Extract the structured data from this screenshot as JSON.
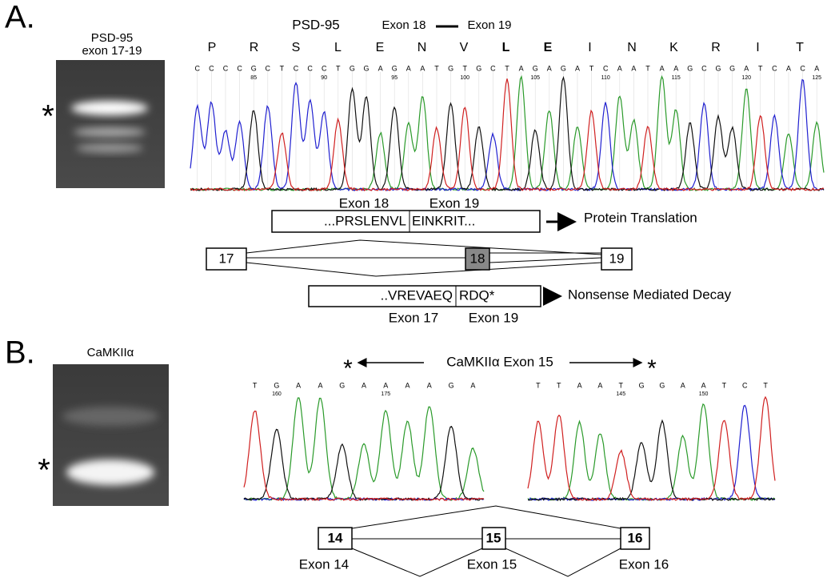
{
  "panel_a": {
    "label": "A.",
    "gel_label_line1": "PSD-95",
    "gel_label_line2": "exon 17-19",
    "gel_band_marker": "*",
    "title_gene": "PSD-95",
    "title_left": "Exon 18",
    "title_right": "Exon 19",
    "amino_acids": [
      "P",
      "R",
      "S",
      "L",
      "E",
      "N",
      "V",
      "L",
      "E",
      "I",
      "N",
      "K",
      "R",
      "I",
      "T"
    ],
    "bases": [
      "C",
      "C",
      "C",
      "C",
      "G",
      "C",
      "T",
      "C",
      "C",
      "C",
      "T",
      "G",
      "G",
      "A",
      "G",
      "A",
      "A",
      "T",
      "G",
      "T",
      "G",
      "C",
      "T",
      "A",
      "G",
      "A",
      "G",
      "A",
      "T",
      "C",
      "A",
      "A",
      "T",
      "A",
      "A",
      "G",
      "C",
      "G",
      "G",
      "A",
      "T",
      "C",
      "A",
      "C",
      "A"
    ],
    "positions": [
      "85",
      "90",
      "95",
      "100",
      "105",
      "110",
      "115",
      "120",
      "125"
    ],
    "protein_top": {
      "exon_left": "Exon 18",
      "exon_right": "Exon 19",
      "left": "...PRSLENVL",
      "right": "EINKRIT...",
      "outcome": "Protein Translation"
    },
    "exons": [
      "17",
      "18",
      "19"
    ],
    "protein_bottom": {
      "left": "..VREVAEQ",
      "right": "RDQ*",
      "outcome": "Nonsense Mediated Decay",
      "exon_left": "Exon 17",
      "exon_right": "Exon 19"
    }
  },
  "panel_b": {
    "label": "B.",
    "gel_label": "CaMKIIα",
    "gel_band_marker": "*",
    "star_left": "*",
    "star_right": "*",
    "title": "CaMKIIα Exon 15",
    "bases_left": [
      "T",
      "G",
      "A",
      "A",
      "G",
      "A",
      "A",
      "A",
      "A",
      "G",
      "A"
    ],
    "positions_left": [
      "160",
      "175"
    ],
    "bases_right": [
      "T",
      "T",
      "A",
      "A",
      "T",
      "G",
      "G",
      "A",
      "A",
      "T",
      "C",
      "T"
    ],
    "positions_right": [
      "145",
      "150"
    ],
    "exons": [
      "14",
      "15",
      "16"
    ],
    "exon_labels": [
      "Exon 14",
      "Exon 15",
      "Exon 16"
    ]
  }
}
